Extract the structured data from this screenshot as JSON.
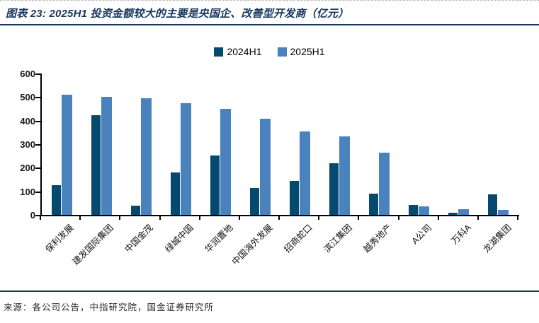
{
  "figure": {
    "title": "图表 23: 2025H1 投资金额较大的主要是央国企、改善型开发商（亿元）",
    "source": "来源：各公司公告，中指研究院，国金证券研究所"
  },
  "colors": {
    "series_2024h1": "#05496e",
    "series_2025h1": "#4a82be",
    "rule": "#17375e",
    "title_text": "#16365d",
    "axis": "#000000"
  },
  "chart_data": {
    "type": "bar",
    "title": "2025H1 投资金额较大的主要是央国企、改善型开发商（亿元）",
    "categories": [
      "保利发展",
      "建发国际集团",
      "中国金茂",
      "绿城中国",
      "华润置地",
      "中国海外发展",
      "招商蛇口",
      "滨江集团",
      "越秀地产",
      "A公司",
      "万科A",
      "龙湖集团"
    ],
    "series": [
      {
        "name": "2024H1",
        "color": "#05496e",
        "values": [
          125,
          424,
          40,
          180,
          253,
          115,
          145,
          220,
          91,
          41,
          8,
          88
        ]
      },
      {
        "name": "2025H1",
        "color": "#4a82be",
        "values": [
          510,
          500,
          494,
          475,
          450,
          407,
          353,
          334,
          264,
          37,
          25,
          20
        ]
      }
    ],
    "xlabel": "",
    "ylabel": "",
    "ylim": [
      0,
      600
    ],
    "ytick_step": 100,
    "grid": false,
    "legend_position": "top-center",
    "unit": "亿元"
  }
}
